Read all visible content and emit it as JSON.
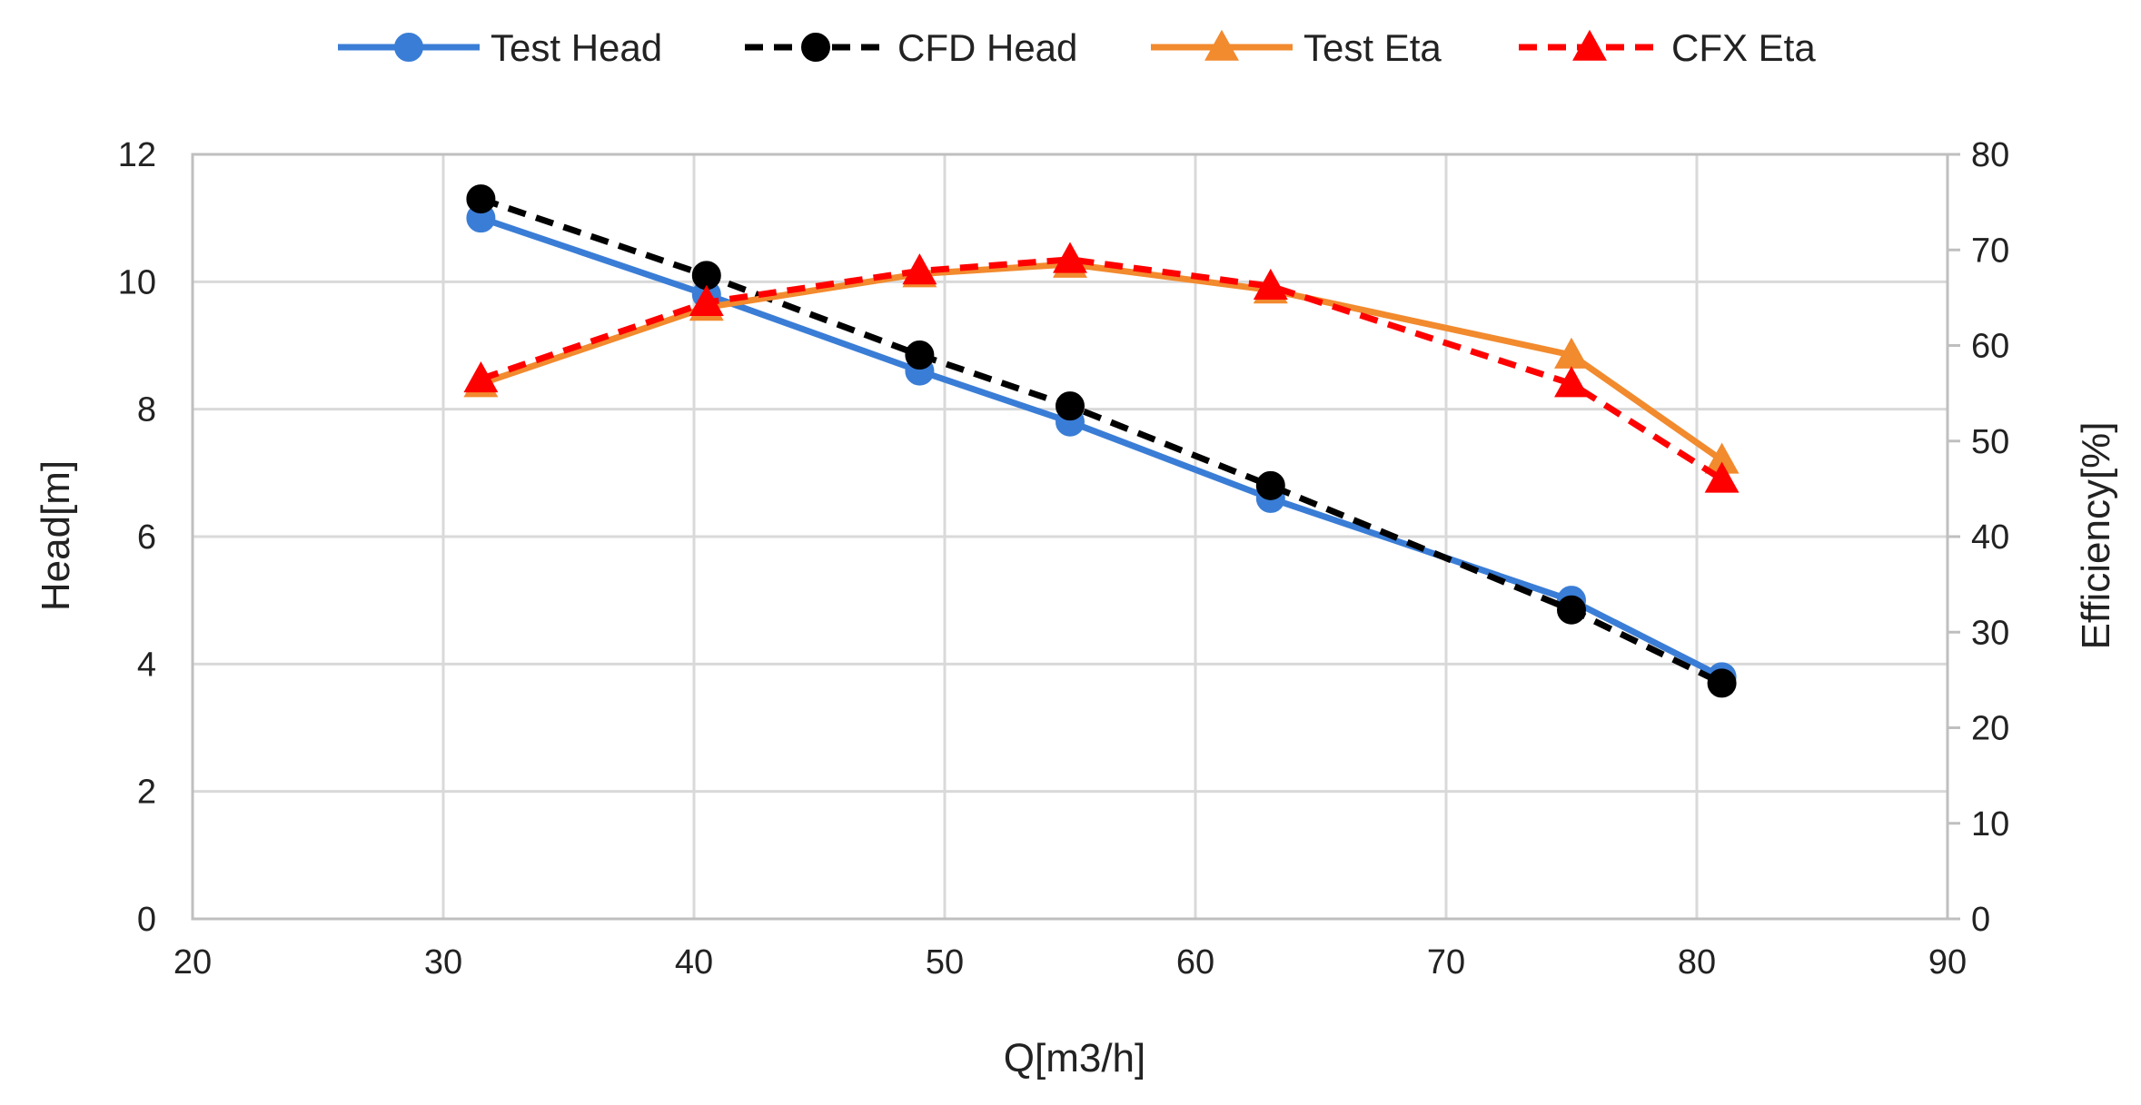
{
  "chart_data": {
    "type": "line",
    "title": "",
    "xlabel": "Q[m3/h]",
    "ylabel_left": "Head[m]",
    "ylabel_right": "Efficiency[%]",
    "xlim": [
      20,
      90
    ],
    "xticks": [
      20,
      30,
      40,
      50,
      60,
      70,
      80,
      90
    ],
    "ylim_left": [
      0,
      12
    ],
    "yticks_left": [
      0,
      2,
      4,
      6,
      8,
      10,
      12
    ],
    "ylim_right": [
      0,
      80
    ],
    "yticks_right": [
      0,
      10,
      20,
      30,
      40,
      50,
      60,
      70,
      80
    ],
    "grid": true,
    "legend_position": "top",
    "series": [
      {
        "name": "Test Head",
        "axis": "left",
        "color": "#3a7dd6",
        "dash": "solid",
        "marker": "circle",
        "x": [
          31.5,
          40.5,
          49,
          55,
          63,
          75,
          81
        ],
        "y": [
          11.0,
          9.8,
          8.6,
          7.8,
          6.6,
          5.0,
          3.8
        ]
      },
      {
        "name": "CFD Head",
        "axis": "left",
        "color": "#000000",
        "dash": "dashed",
        "marker": "circle",
        "x": [
          31.5,
          40.5,
          49,
          55,
          63,
          75,
          81
        ],
        "y": [
          11.3,
          10.1,
          8.85,
          8.05,
          6.8,
          4.85,
          3.7
        ]
      },
      {
        "name": "Test Eta",
        "axis": "right",
        "color": "#f28a2e",
        "dash": "solid",
        "marker": "triangle",
        "x": [
          31.5,
          40.5,
          49,
          55,
          63,
          75,
          81
        ],
        "y": [
          56,
          64,
          67.5,
          68.5,
          65.8,
          59,
          48
        ]
      },
      {
        "name": "CFX Eta",
        "axis": "right",
        "color": "#ff0000",
        "dash": "dashed",
        "marker": "triangle",
        "x": [
          31.5,
          40.5,
          49,
          55,
          63,
          75,
          81
        ],
        "y": [
          56.5,
          64.5,
          67.8,
          69,
          66.2,
          56,
          46
        ]
      }
    ]
  }
}
